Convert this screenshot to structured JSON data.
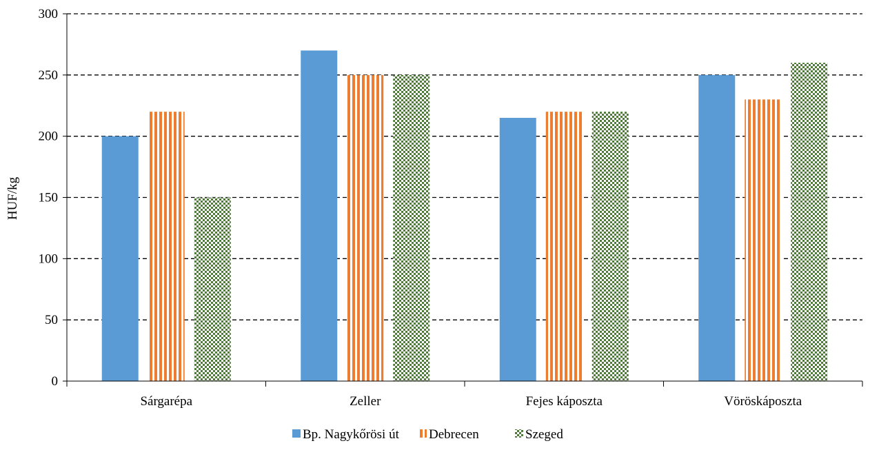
{
  "chart_data": {
    "type": "bar",
    "title": "",
    "xlabel": "",
    "ylabel": "HUF/kg",
    "ylim": [
      0,
      300
    ],
    "yticks": [
      0,
      50,
      100,
      150,
      200,
      250,
      300
    ],
    "grid": true,
    "grid_style": "dashed",
    "legend_position": "bottom",
    "categories": [
      "Sárgarépa",
      "Zeller",
      "Fejes káposzta",
      "Vöröskáposzta"
    ],
    "series": [
      {
        "name": "Bp. Nagykőrösi út",
        "values": [
          200,
          270,
          215,
          250
        ],
        "color": "#5B9BD5",
        "pattern": "solid"
      },
      {
        "name": "Debrecen",
        "values": [
          220,
          250,
          220,
          230
        ],
        "color": "#ED7D31",
        "pattern": "vertical-stripes"
      },
      {
        "name": "Szeged",
        "values": [
          150,
          250,
          220,
          260
        ],
        "color": "#4E7A3A",
        "pattern": "checkerboard"
      }
    ]
  }
}
